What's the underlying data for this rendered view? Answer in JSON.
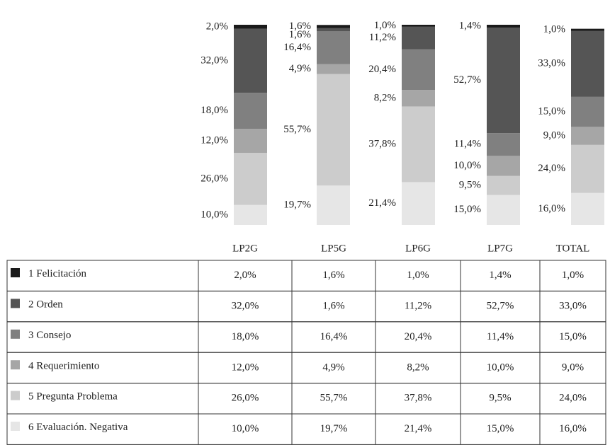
{
  "chart_data": {
    "type": "bar",
    "stacked": true,
    "categories": [
      "LP2G",
      "LP5G",
      "LP6G",
      "LP7G",
      "TOTAL"
    ],
    "ylim": [
      0,
      100
    ],
    "series": [
      {
        "name": "1 Felicitación",
        "color": "#1a1a1a",
        "values": [
          2.0,
          1.6,
          1.0,
          1.4,
          1.0
        ],
        "value_labels": [
          "2,0%",
          "1,6%",
          "1,0%",
          "1,4%",
          "1,0%"
        ]
      },
      {
        "name": "2 Orden",
        "color": "#555555",
        "values": [
          32.0,
          1.6,
          11.2,
          52.7,
          33.0
        ],
        "value_labels": [
          "32,0%",
          "1,6%",
          "11,2%",
          "52,7%",
          "33,0%"
        ]
      },
      {
        "name": "3 Consejo",
        "color": "#808080",
        "values": [
          18.0,
          16.4,
          20.4,
          11.4,
          15.0
        ],
        "value_labels": [
          "18,0%",
          "16,4%",
          "20,4%",
          "11,4%",
          "15,0%"
        ]
      },
      {
        "name": "4 Requerimiento",
        "color": "#a6a6a6",
        "values": [
          12.0,
          4.9,
          8.2,
          10.0,
          9.0
        ],
        "value_labels": [
          "12,0%",
          "4,9%",
          "8,2%",
          "10,0%",
          "9,0%"
        ]
      },
      {
        "name": "5 Pregunta Problema",
        "color": "#cccccc",
        "values": [
          26.0,
          55.7,
          37.8,
          9.5,
          24.0
        ],
        "value_labels": [
          "26,0%",
          "55,7%",
          "37,8%",
          "9,5%",
          "24,0%"
        ]
      },
      {
        "name": "6 Evaluación. Negativa",
        "color": "#e6e6e6",
        "values": [
          10.0,
          19.7,
          21.4,
          15.0,
          16.0
        ],
        "value_labels": [
          "10,0%",
          "19,7%",
          "21,4%",
          "15,0%",
          "16,0%"
        ]
      }
    ]
  }
}
